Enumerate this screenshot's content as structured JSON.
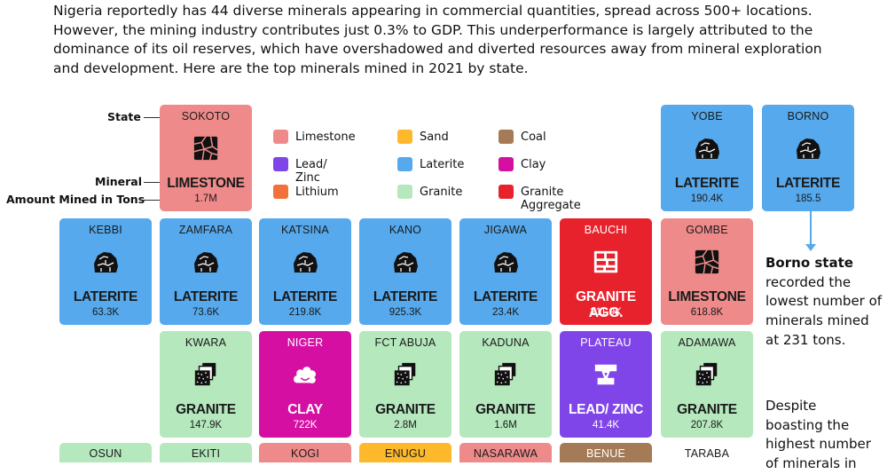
{
  "intro": {
    "line1": "Nigeria reportedly has 44 diverse minerals appearing in commercial quantities, spread across 500+ locations.",
    "line2": "However, the mining industry contributes just 0.3% to GDP. This underperformance is largely attributed to the",
    "line3": "dominance of its oil reserves, which have overshadowed and diverted resources away from mineral exploration",
    "line4": "and development. Here are the top minerals mined in 2021 by state."
  },
  "key_labels": {
    "state": "State",
    "mineral": "Mineral",
    "amount": "Amount Mined in Tons"
  },
  "legend": [
    {
      "label": "Limestone",
      "color": "#ef8a8a"
    },
    {
      "label": "Sand",
      "color": "#fdb92b"
    },
    {
      "label": "Coal",
      "color": "#a57a56"
    },
    {
      "label": "Lead/ Zinc",
      "color": "#8045e8"
    },
    {
      "label": "Laterite",
      "color": "#56a9ec"
    },
    {
      "label": "Clay",
      "color": "#d60fa3"
    },
    {
      "label": "Lithium",
      "color": "#f4703a"
    },
    {
      "label": "Granite",
      "color": "#b5e8bd"
    },
    {
      "label": "Granite Aggregate",
      "color": "#e8222c"
    }
  ],
  "tiles": {
    "sokoto": {
      "state": "SOKOTO",
      "mineral": "LIMESTONE",
      "amount": "1.7M"
    },
    "yobe": {
      "state": "YOBE",
      "mineral": "LATERITE",
      "amount": "190.4K"
    },
    "borno": {
      "state": "BORNO",
      "mineral": "LATERITE",
      "amount": "185.5"
    },
    "kebbi": {
      "state": "KEBBI",
      "mineral": "LATERITE",
      "amount": "63.3K"
    },
    "zamfara": {
      "state": "ZAMFARA",
      "mineral": "LATERITE",
      "amount": "73.6K"
    },
    "katsina": {
      "state": "KATSINA",
      "mineral": "LATERITE",
      "amount": "219.8K"
    },
    "kano": {
      "state": "KANO",
      "mineral": "LATERITE",
      "amount": "925.3K"
    },
    "jigawa": {
      "state": "JIGAWA",
      "mineral": "LATERITE",
      "amount": "23.4K"
    },
    "bauchi": {
      "state": "BAUCHI",
      "mineral": "GRANITE AGG.",
      "amount": "211.9K"
    },
    "gombe": {
      "state": "GOMBE",
      "mineral": "LIMESTONE",
      "amount": "618.8K"
    },
    "kwara": {
      "state": "KWARA",
      "mineral": "GRANITE",
      "amount": "147.9K"
    },
    "niger": {
      "state": "NIGER",
      "mineral": "CLAY",
      "amount": "722K"
    },
    "fct": {
      "state": "FCT ABUJA",
      "mineral": "GRANITE",
      "amount": "2.8M"
    },
    "kaduna": {
      "state": "KADUNA",
      "mineral": "GRANITE",
      "amount": "1.6M"
    },
    "plateau": {
      "state": "PLATEAU",
      "mineral": "LEAD/ ZINC",
      "amount": "41.4K"
    },
    "adamawa": {
      "state": "ADAMAWA",
      "mineral": "GRANITE",
      "amount": "207.8K"
    },
    "osun": {
      "state": "OSUN"
    },
    "ekiti": {
      "state": "EKITI"
    },
    "kogi": {
      "state": "KOGI"
    },
    "enugu": {
      "state": "ENUGU"
    },
    "nasarawa": {
      "state": "NASARAWA"
    },
    "benue": {
      "state": "BENUE"
    },
    "taraba": {
      "state": "TARABA"
    }
  },
  "side_note": {
    "p1_bold": "Borno state",
    "p1_l2": "recorded the",
    "p1_l3": "lowest number of",
    "p1_l4": "minerals mined",
    "p1_l5": "at 231 tons.",
    "p2_l1": "Despite",
    "p2_l2": "boasting the",
    "p2_l3": "highest number",
    "p2_l4": "of  minerals in"
  }
}
